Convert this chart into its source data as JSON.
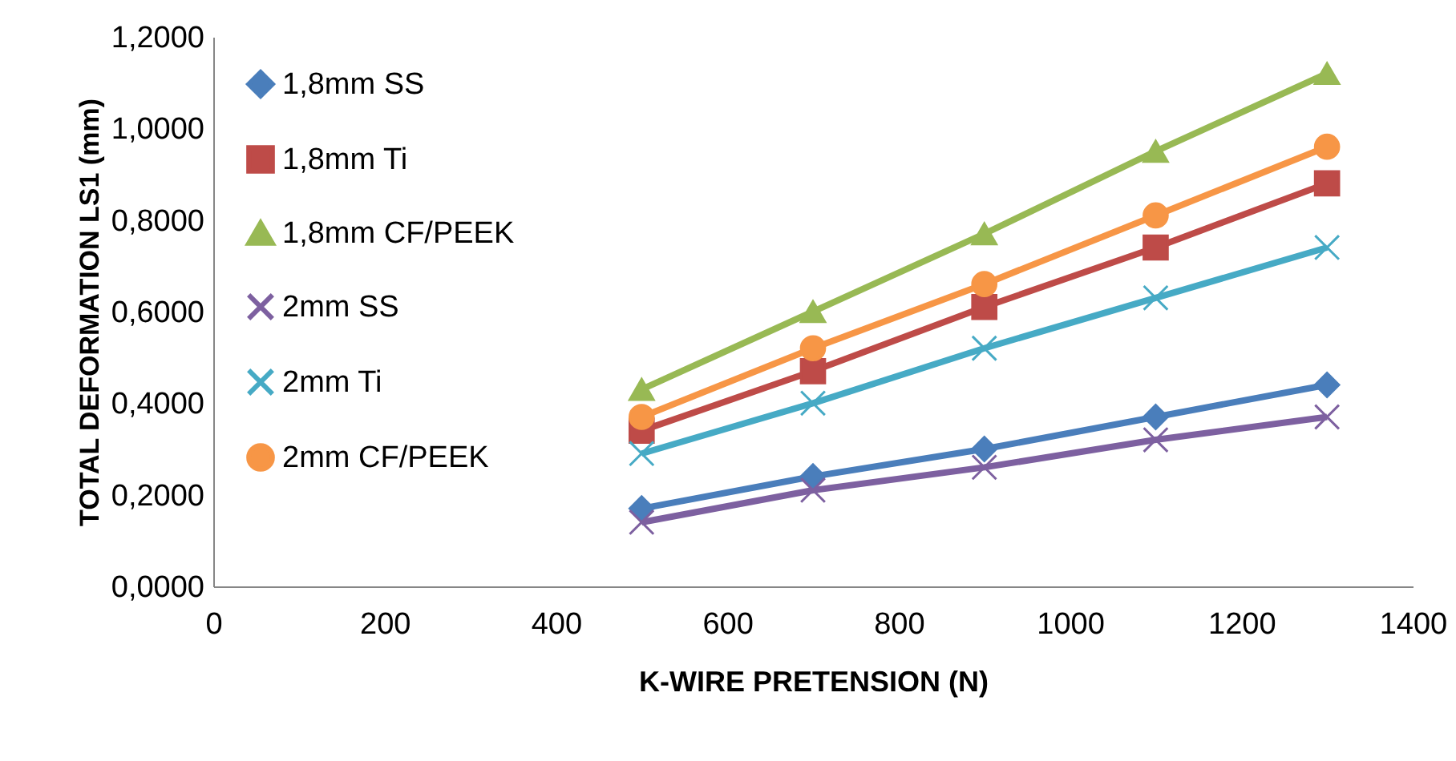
{
  "chart_data": {
    "type": "line",
    "xlabel": "K-WIRE PRETENSION (N)",
    "ylabel": "TOTAL DEFORMATION LS1 (mm)",
    "x": [
      500,
      700,
      900,
      1100,
      1300
    ],
    "xlim": [
      0,
      1400
    ],
    "xticks": [
      0,
      200,
      400,
      600,
      800,
      1000,
      1200,
      1400
    ],
    "ylim": [
      0,
      1.2
    ],
    "yticks": [
      {
        "value": 0,
        "label": "0,0000"
      },
      {
        "value": 0.2,
        "label": "0,2000"
      },
      {
        "value": 0.4,
        "label": "0,4000"
      },
      {
        "value": 0.6,
        "label": "0,6000"
      },
      {
        "value": 0.8,
        "label": "0,8000"
      },
      {
        "value": 1.0,
        "label": "1,0000"
      },
      {
        "value": 1.2,
        "label": "1,2000"
      }
    ],
    "grid": false,
    "legend": "top left",
    "series": [
      {
        "name": "1,8mm SS",
        "color": "#4a7ebb",
        "marker": "diamond",
        "values": [
          0.17,
          0.24,
          0.3,
          0.37,
          0.44
        ]
      },
      {
        "name": "1,8mm Ti",
        "color": "#be4b48",
        "marker": "square",
        "values": [
          0.34,
          0.47,
          0.61,
          0.74,
          0.88
        ]
      },
      {
        "name": "1,8mm CF/PEEK",
        "color": "#98b954",
        "marker": "triangle",
        "values": [
          0.43,
          0.6,
          0.77,
          0.95,
          1.12
        ]
      },
      {
        "name": "2mm SS",
        "color": "#7d60a0",
        "marker": "cross",
        "values": [
          0.14,
          0.21,
          0.26,
          0.32,
          0.37
        ]
      },
      {
        "name": "2mm Ti",
        "color": "#46aac5",
        "marker": "cross",
        "values": [
          0.29,
          0.4,
          0.52,
          0.63,
          0.74
        ]
      },
      {
        "name": "2mm CF/PEEK",
        "color": "#f79646",
        "marker": "circle",
        "values": [
          0.37,
          0.52,
          0.66,
          0.81,
          0.96
        ]
      }
    ]
  }
}
